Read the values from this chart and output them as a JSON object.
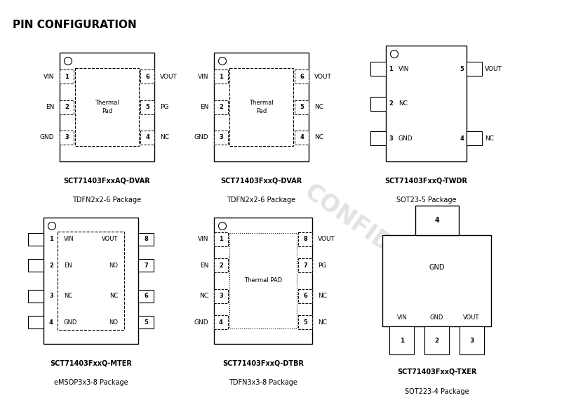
{
  "title": "PIN CONFIGURATION",
  "bg": "#ffffff",
  "watermark": "CONFIDENTIAL",
  "pkg1": {
    "name": "SCT71403FxxAQ-DVAR",
    "pkg": "TDFN2x2-6 Package",
    "left_pins": [
      [
        "1",
        "VIN"
      ],
      [
        "2",
        "EN"
      ],
      [
        "3",
        "GND"
      ]
    ],
    "right_pins": [
      [
        "6",
        "VOUT"
      ],
      [
        "5",
        "PG"
      ],
      [
        "4",
        "NC"
      ]
    ],
    "thermal": "Thermal\nPad",
    "thermal_style": "dashed"
  },
  "pkg2": {
    "name": "SCT71403FxxQ-DVAR",
    "pkg": "TDFN2x2-6 Package",
    "left_pins": [
      [
        "1",
        "VIN"
      ],
      [
        "2",
        "EN"
      ],
      [
        "3",
        "GND"
      ]
    ],
    "right_pins": [
      [
        "6",
        "VOUT"
      ],
      [
        "5",
        "NC"
      ],
      [
        "4",
        "NC"
      ]
    ],
    "thermal": "Thermal\nPad",
    "thermal_style": "dashed"
  },
  "pkg3": {
    "name": "SCT71403FxxQ-TWDR",
    "pkg": "SOT23-5 Package",
    "left_pins": [
      [
        "1",
        "VIN"
      ],
      [
        "2",
        "NC"
      ],
      [
        "3",
        "GND"
      ]
    ],
    "right_pins": [
      [
        "5",
        "VOUT"
      ],
      [
        "4",
        "NC"
      ]
    ]
  },
  "pkg4": {
    "name": "SCT71403FxxQ-MTER",
    "pkg": "eMSOP3x3-8 Package",
    "left_pins": [
      [
        "1",
        "VIN"
      ],
      [
        "2",
        "EN"
      ],
      [
        "3",
        "NC"
      ],
      [
        "4",
        "GND"
      ]
    ],
    "right_pins": [
      [
        "8",
        "VOUT"
      ],
      [
        "7",
        "NO"
      ],
      [
        "6",
        "NC"
      ],
      [
        "5",
        "NO"
      ]
    ],
    "inner_labels": [
      [
        "VIN",
        "VOUT"
      ],
      [
        "EN",
        "NO"
      ],
      [
        "NC",
        "NC"
      ],
      [
        "GND",
        "NO"
      ]
    ],
    "thermal_style": "dashed"
  },
  "pkg5": {
    "name": "SCT71403FxxQ-DTBR",
    "pkg": "TDFN3x3-8 Package",
    "left_pins": [
      [
        "1",
        "VIN"
      ],
      [
        "2",
        "EN"
      ],
      [
        "3",
        "NC"
      ],
      [
        "4",
        "GND"
      ]
    ],
    "right_pins": [
      [
        "8",
        "VOUT"
      ],
      [
        "7",
        "PG"
      ],
      [
        "6",
        "NC"
      ],
      [
        "5",
        "NC"
      ]
    ],
    "thermal": "Thermal PAD",
    "thermal_style": "dotted"
  },
  "pkg6": {
    "name": "SCT71403FxxQ-TXER",
    "pkg": "SOT223-4 Package",
    "bottom_pins": [
      [
        "1",
        "VIN"
      ],
      [
        "2",
        "GND"
      ],
      [
        "3",
        "VOUT"
      ]
    ],
    "top_pin": [
      "4",
      "GND"
    ]
  }
}
